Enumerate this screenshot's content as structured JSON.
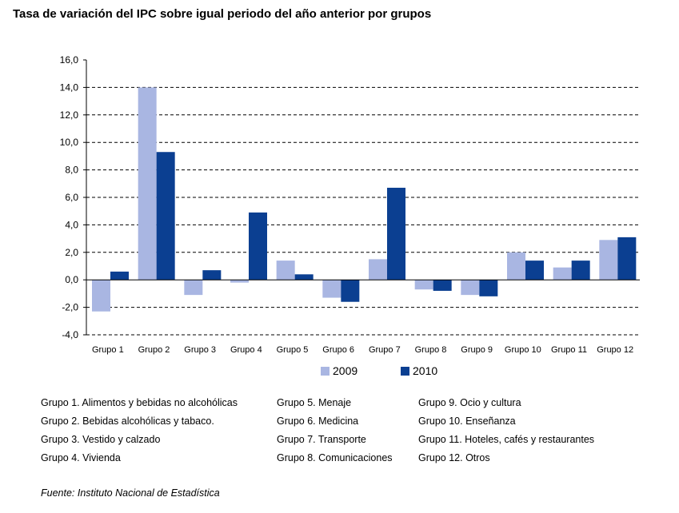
{
  "title": "Tasa de variación del IPC sobre igual periodo del año anterior por grupos",
  "colors": {
    "s2009": "#a9b6e2",
    "s2010": "#0b3f91"
  },
  "chart_data": {
    "type": "bar",
    "categories": [
      "Grupo 1",
      "Grupo 2",
      "Grupo 3",
      "Grupo 4",
      "Grupo 5",
      "Grupo 6",
      "Grupo 7",
      "Grupo 8",
      "Grupo 9",
      "Grupo 10",
      "Grupo 11",
      "Grupo 12"
    ],
    "series": [
      {
        "name": "2009",
        "values": [
          -2.3,
          14.0,
          -1.1,
          -0.2,
          1.4,
          -1.3,
          1.5,
          -0.7,
          -1.1,
          2.0,
          0.9,
          2.9
        ]
      },
      {
        "name": "2010",
        "values": [
          0.6,
          9.3,
          0.7,
          4.9,
          0.4,
          -1.6,
          6.7,
          -0.8,
          -1.2,
          1.4,
          1.4,
          3.1
        ]
      }
    ],
    "yticks": [
      "-4,0",
      "-2,0",
      "0,0",
      "2,0",
      "4,0",
      "6,0",
      "8,0",
      "10,0",
      "12,0",
      "14,0",
      "16,0"
    ],
    "ylim": [
      -4,
      16
    ],
    "grid": "dashed horizontal",
    "legend": "bottom"
  },
  "notes": [
    [
      "Grupo 1. Alimentos y bebidas no alcohólicas",
      "Grupo 2. Bebidas alcohólicas y  tabaco.",
      "Grupo 3. Vestido y calzado",
      "Grupo 4. Vivienda"
    ],
    [
      "Grupo 5. Menaje",
      "Grupo 6. Medicina",
      "Grupo 7. Transporte",
      "Grupo 8. Comunicaciones"
    ],
    [
      "Grupo 9. Ocio y cultura",
      "Grupo 10. Enseñanza",
      "Grupo 11. Hoteles, cafés y restaurantes",
      "Grupo 12. Otros"
    ]
  ],
  "source": "Fuente: Instituto Nacional de Estadística"
}
